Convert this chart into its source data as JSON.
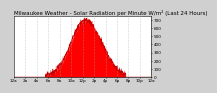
{
  "title": "Milwaukee Weather - Solar Radiation per Minute W/m² (Last 24 Hours)",
  "background_color": "#ffffff",
  "plot_bg_color": "#ffffff",
  "fill_color": "#ff0000",
  "line_color": "#cc0000",
  "ylabel_right": true,
  "yticks": [
    0,
    100,
    200,
    300,
    400,
    500,
    600,
    700
  ],
  "ylim": [
    0,
    750
  ],
  "num_points": 1440,
  "peak_hour": 12.5,
  "peak_value": 700,
  "dawn_hour": 5.5,
  "dusk_hour": 19.5,
  "noise_scale": 20,
  "title_fontsize": 4,
  "tick_fontsize": 3,
  "outer_bg": "#d0d0d0",
  "vgrid_color": "#aaaaaa",
  "vgrid_positions": [
    2,
    4,
    6,
    8,
    10,
    12,
    14,
    16,
    18,
    20,
    22
  ]
}
